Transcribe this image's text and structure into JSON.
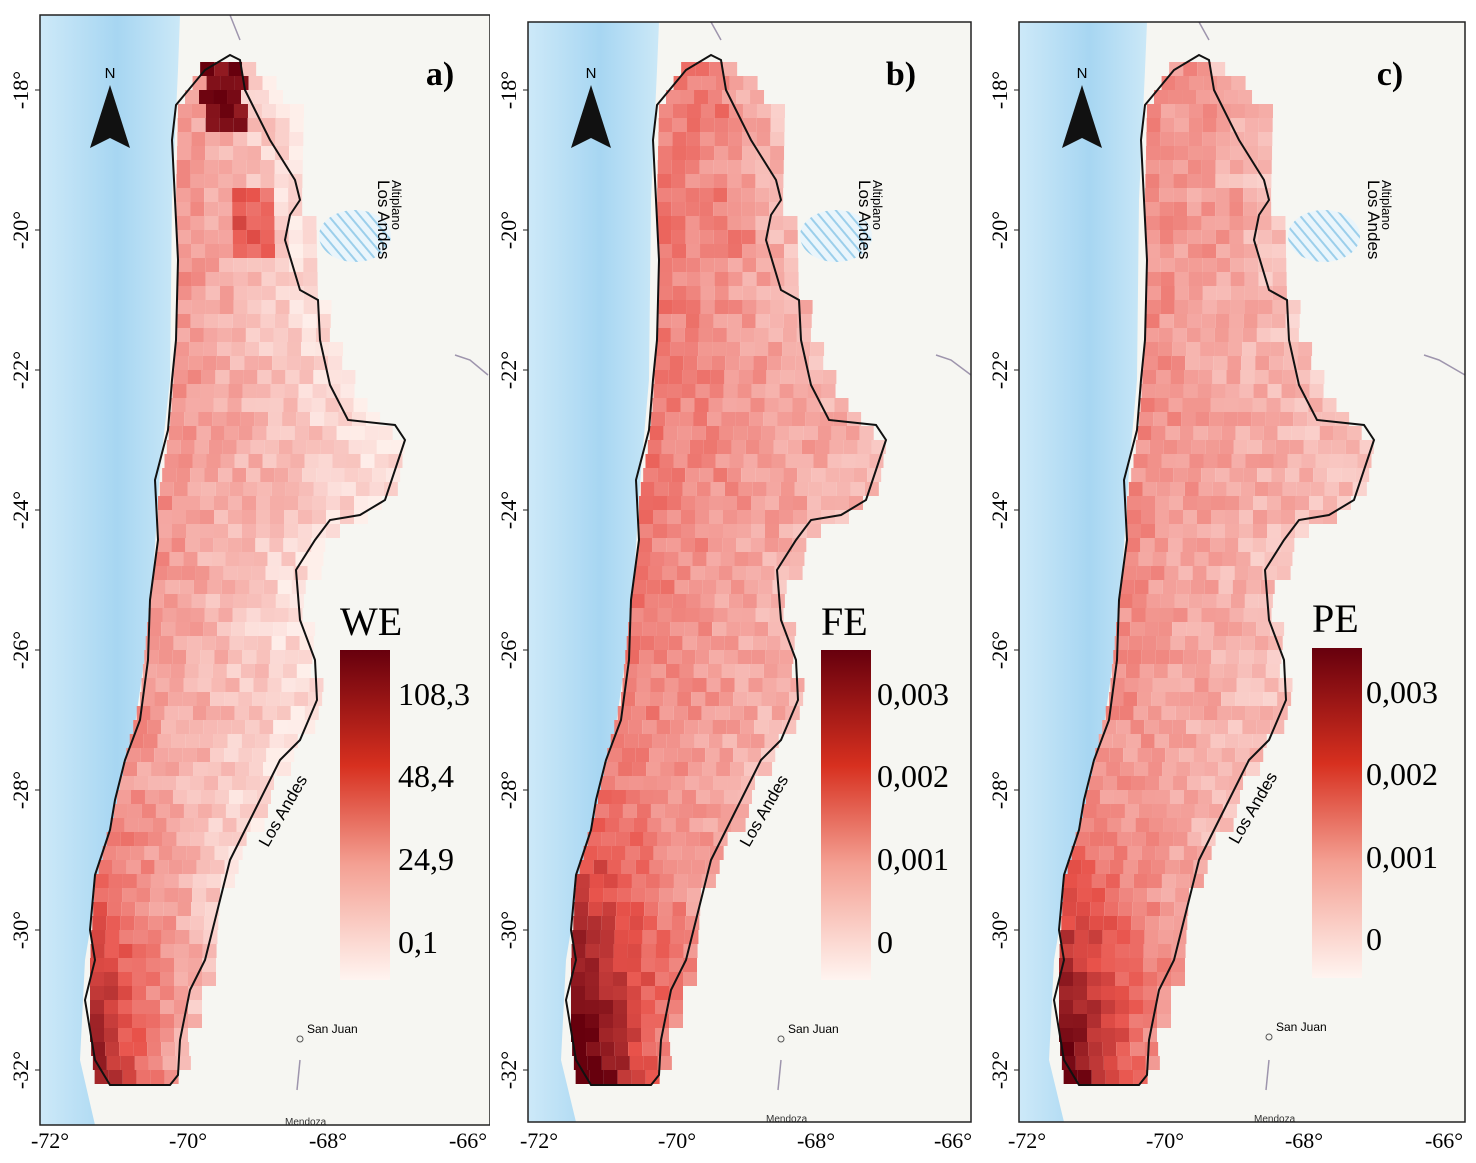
{
  "colors": {
    "ocean": "#a7d6f2",
    "ocean_shallow": "#cde9f8",
    "land": "#f6f6f2",
    "region_base": "#fbe3dc",
    "ramp_low": "#fff4f0",
    "ramp_mid": "#e8524a",
    "ramp_high": "#67000d",
    "hatch": "#9ccfeb",
    "outline": "#111111",
    "border_line": "#9e95ad"
  },
  "axis": {
    "lat_ticks": [
      "-18°",
      "-20°",
      "-22°",
      "-24°",
      "-26°",
      "-28°",
      "-30°",
      "-32°"
    ],
    "lon_ticks": [
      "-72°",
      "-70°",
      "-68°",
      "-66°"
    ]
  },
  "map_labels": {
    "north": "N",
    "altiplano": "Altiplano",
    "los_andes_north": "Los Andes",
    "los_andes_south": "Los Andes",
    "san_juan": "San Juan",
    "mendoza": "Mendoza"
  },
  "panels": [
    {
      "letter": "a)",
      "legend_title": "WE",
      "legend_ticks": [
        "108,3",
        "48,4",
        "24,9",
        "0,1"
      ],
      "intensity": {
        "north_hotspot": 0.95,
        "coast": 0.55,
        "interior": 0.05,
        "south": 0.6
      }
    },
    {
      "letter": "b)",
      "legend_title": "FE",
      "legend_ticks": [
        "0,003",
        "0,002",
        "0,001",
        "0"
      ],
      "intensity": {
        "north_hotspot": 0.45,
        "coast": 0.6,
        "interior": 0.22,
        "south": 0.95
      }
    },
    {
      "letter": "c)",
      "legend_title": "PE",
      "legend_ticks": [
        "0,003",
        "0,002",
        "0,001",
        "0"
      ],
      "intensity": {
        "north_hotspot": 0.35,
        "coast": 0.5,
        "interior": 0.18,
        "south": 0.85
      }
    }
  ]
}
